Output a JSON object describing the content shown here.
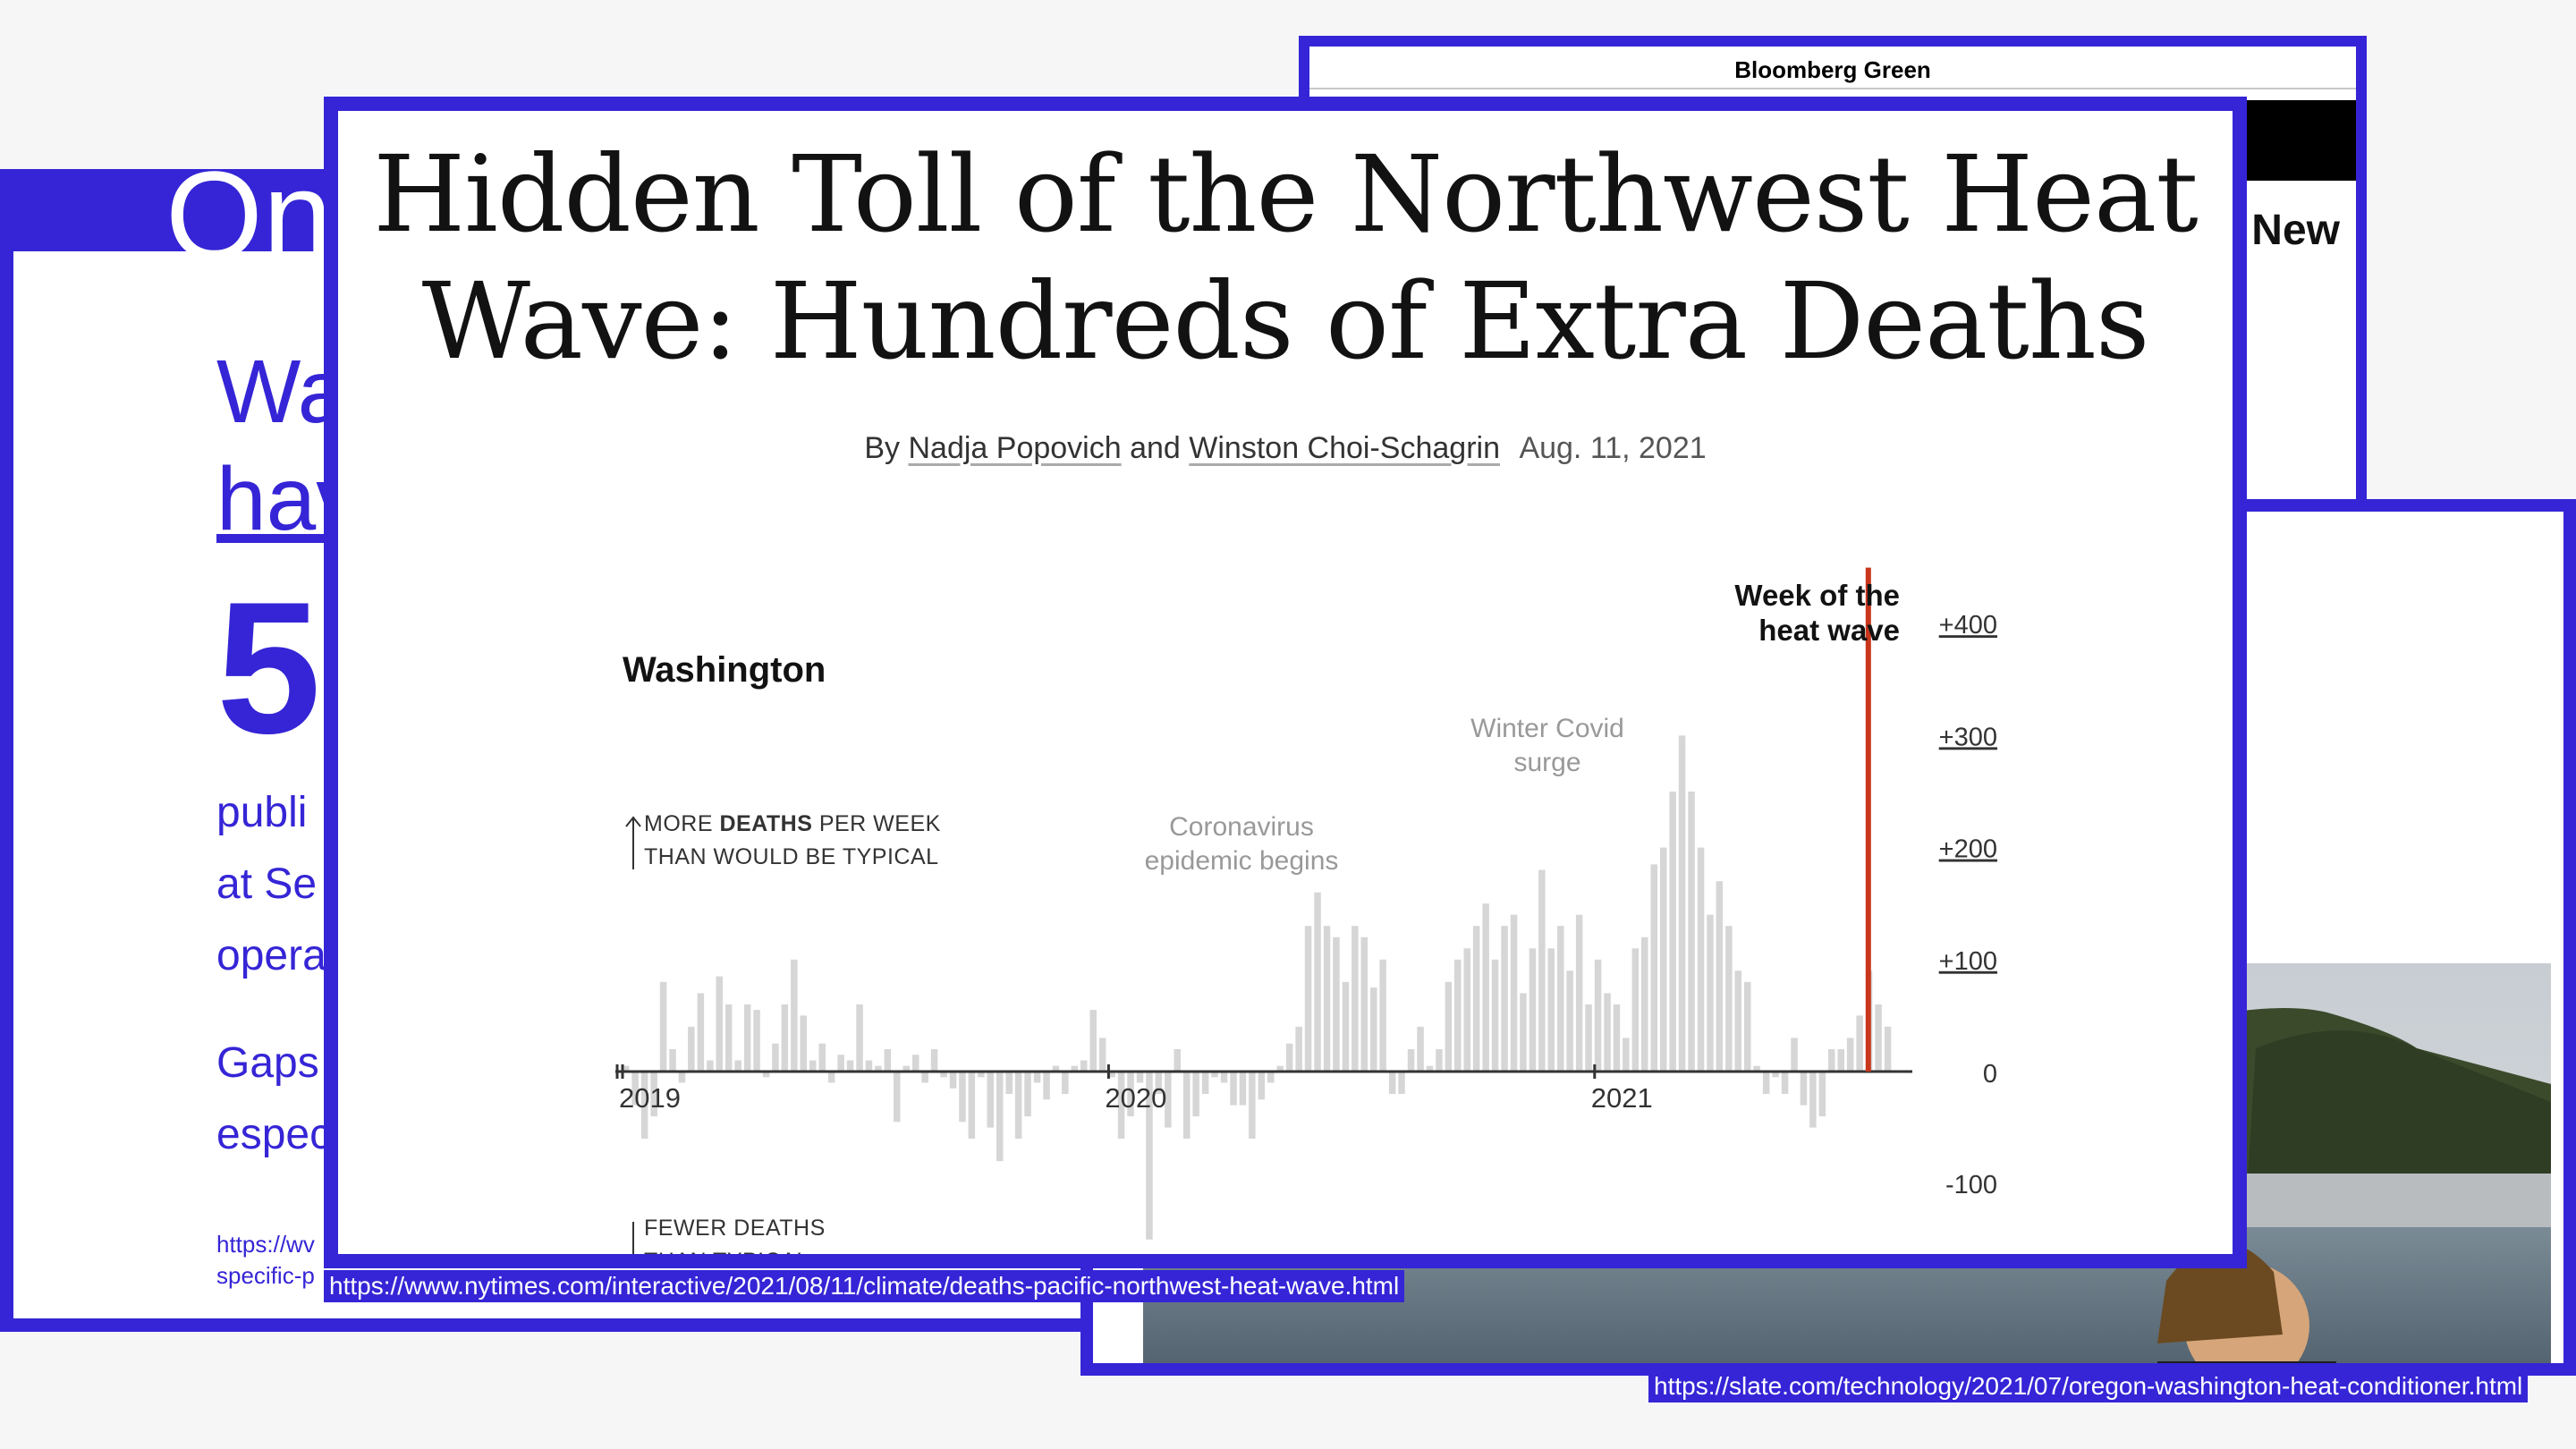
{
  "left_slide": {
    "title_fragment": "On",
    "line1": "Wa",
    "line2": "hav",
    "big_number": "5",
    "line3": "publi",
    "line4": "at Se",
    "line5": "opera",
    "line6": "Gaps",
    "line7": "espec",
    "link1": "https://wv",
    "link2": "specific-p"
  },
  "bloomberg": {
    "brand": "Bloomberg Green",
    "headline_fragment": "New"
  },
  "slate": {
    "url": "https://slate.com/technology/2021/07/oregon-washington-heat-conditioner.html"
  },
  "nyt": {
    "title_line1": "Hidden Toll of the Northwest Heat",
    "title_line2": "Wave: Hundreds of Extra Deaths",
    "by": "By",
    "author1": "Nadja Popovich",
    "and": "and",
    "author2": "Winston Choi-Schagrin",
    "date": "Aug. 11, 2021",
    "url": "https://www.nytimes.com/interactive/2021/08/11/climate/deaths-pacific-northwest-heat-wave.html"
  },
  "colors": {
    "accent": "#3525d6",
    "bar": "#d6d6d6",
    "highlight": "#c8361c"
  },
  "chart_data": {
    "type": "bar",
    "title": "Washington",
    "up_label_line1_pre": "MORE ",
    "up_label_line1_bold": "DEATHS",
    "up_label_line1_post": " PER WEEK",
    "up_label_line2": "THAN WOULD BE TYPICAL",
    "down_label_line1": "FEWER DEATHS",
    "down_label_line2": "THAN TYPICAL",
    "highlight_label_line1": "Week of the",
    "highlight_label_line2": "heat wave",
    "annotations": [
      {
        "lines": [
          "Coronavirus",
          "epidemic begins"
        ],
        "x": "2020-04"
      },
      {
        "lines": [
          "Winter Covid",
          "surge"
        ],
        "x": "2020-12"
      }
    ],
    "x_ticks": [
      "2019",
      "2020",
      "2021"
    ],
    "y_ticks": [
      400,
      300,
      200,
      100,
      0,
      -100
    ],
    "y_tick_labels": [
      "+400",
      "+300",
      "+200",
      "+100",
      "0",
      "-100"
    ],
    "ylim": [
      -150,
      440
    ],
    "highlight_value": 450,
    "highlight_week_index": 133,
    "values": [
      5,
      -30,
      -60,
      -40,
      80,
      20,
      -10,
      40,
      70,
      10,
      85,
      60,
      10,
      60,
      55,
      -5,
      25,
      60,
      100,
      50,
      10,
      25,
      -10,
      15,
      10,
      60,
      10,
      5,
      20,
      -45,
      5,
      15,
      -10,
      20,
      -5,
      -15,
      -45,
      -60,
      -5,
      -50,
      -80,
      -20,
      -60,
      -40,
      -10,
      -25,
      5,
      -20,
      5,
      10,
      55,
      30,
      -5,
      -60,
      -40,
      -10,
      -150,
      -20,
      -50,
      20,
      -60,
      -40,
      -20,
      -5,
      -10,
      -30,
      -30,
      -60,
      -25,
      -10,
      5,
      25,
      40,
      130,
      160,
      130,
      120,
      80,
      130,
      120,
      75,
      100,
      -20,
      -20,
      20,
      40,
      5,
      20,
      80,
      100,
      110,
      130,
      150,
      100,
      130,
      140,
      70,
      110,
      180,
      110,
      130,
      90,
      140,
      60,
      100,
      70,
      60,
      30,
      110,
      120,
      185,
      200,
      250,
      300,
      250,
      200,
      140,
      170,
      130,
      90,
      80,
      5,
      -20,
      -5,
      -20,
      30,
      -30,
      -50,
      -40,
      20,
      20,
      30,
      50,
      90,
      60,
      40
    ]
  }
}
